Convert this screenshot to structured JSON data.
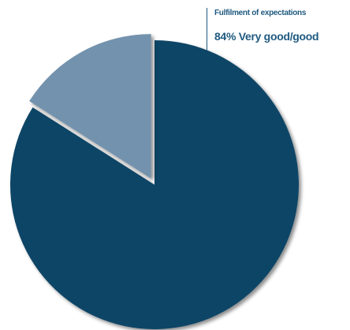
{
  "chart_data": {
    "type": "pie",
    "title": "Fulfilment of expectations",
    "annotation": "84% Very good/good",
    "slices": [
      {
        "value": 84,
        "color": "#0f4566"
      },
      {
        "value": 16,
        "color": "#7392ad"
      }
    ]
  }
}
